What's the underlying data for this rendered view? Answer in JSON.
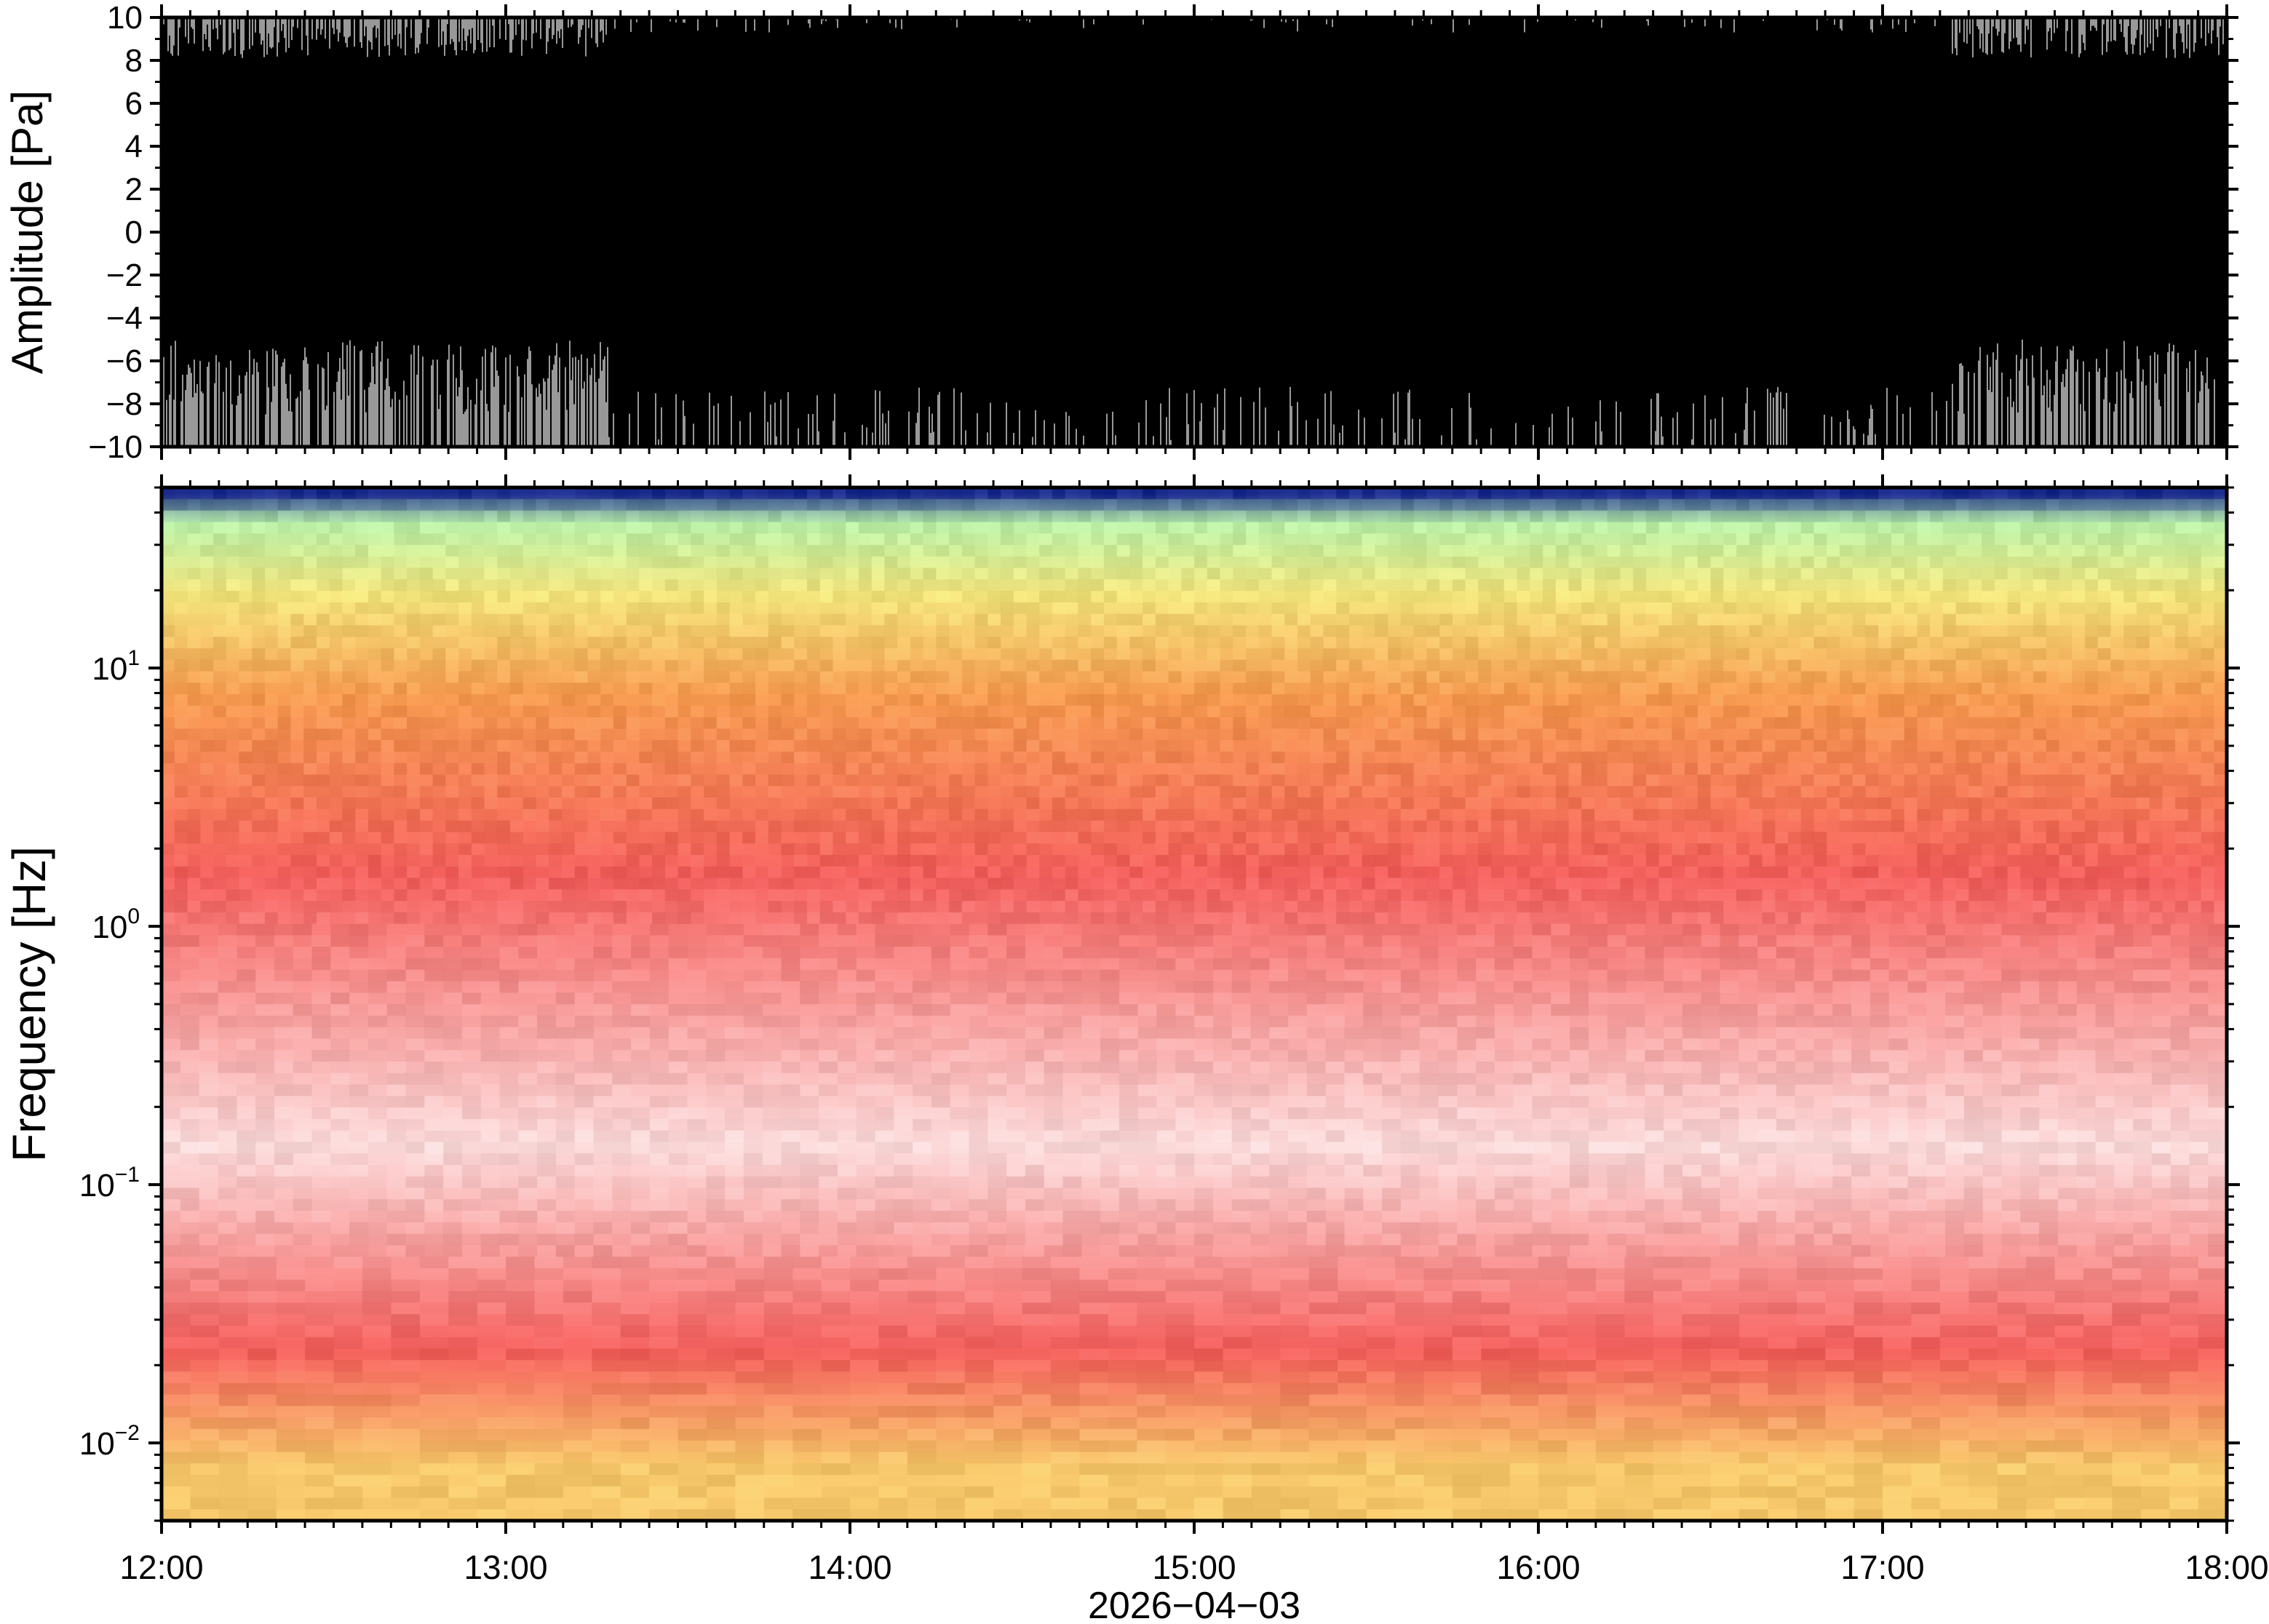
{
  "chart_data": [
    {
      "type": "line",
      "panel": "waveform",
      "ylabel": "Amplitude [Pa]",
      "ylim": [
        -10,
        10
      ],
      "yticks": [
        "10",
        "8",
        "6",
        "4",
        "2",
        "0",
        "−2",
        "−4",
        "−6",
        "−8",
        "−10"
      ],
      "ytick_values": [
        10,
        8,
        6,
        4,
        2,
        0,
        -2,
        -4,
        -6,
        -8,
        -10
      ],
      "xlim": [
        "12:00",
        "18:00"
      ],
      "description_series": {
        "envelope_top": 10,
        "envelope_bottom": -10,
        "quiet_top_min": 9.5,
        "quiet_bottom_max": -7,
        "noisy_intervals_hours": [
          [
            12.0,
            13.3
          ],
          [
            17.2,
            18.0
          ]
        ]
      },
      "colors": {
        "trace": "#000000",
        "gaps": "#ffffff"
      },
      "grid": false
    },
    {
      "type": "heatmap",
      "panel": "spectrogram",
      "ylabel": "Frequency [Hz]",
      "yscale": "log",
      "ylim": [
        0.005,
        50
      ],
      "yticks": [
        {
          "base": "10",
          "exp": "1",
          "value": 10
        },
        {
          "base": "10",
          "exp": "0",
          "value": 1
        },
        {
          "base": "10",
          "exp": "−1",
          "value": 0.1
        },
        {
          "base": "10",
          "exp": "−2",
          "value": 0.01
        }
      ],
      "xlabel": "2026−04−03",
      "xticks": [
        "12:00",
        "13:00",
        "14:00",
        "15:00",
        "16:00",
        "17:00",
        "18:00"
      ],
      "xtick_hours": [
        12,
        13,
        14,
        15,
        16,
        17,
        18
      ],
      "xlim_hours": [
        12,
        18
      ],
      "frequency_bands": [
        {
          "f_low": 45,
          "f_high": 50,
          "color": "#1a2a8c"
        },
        {
          "f_low": 30,
          "f_high": 45,
          "color": "#b8f0a8"
        },
        {
          "f_low": 12,
          "f_high": 30,
          "color": "#f2e27a"
        },
        {
          "f_low": 5,
          "f_high": 12,
          "color": "#f59a50"
        },
        {
          "f_low": 0.5,
          "f_high": 5,
          "color": "#f25f5c"
        },
        {
          "f_low": 0.04,
          "f_high": 0.5,
          "color": "#fbd9d9"
        },
        {
          "f_low": 0.013,
          "f_high": 0.04,
          "color": "#f25f5c"
        },
        {
          "f_low": 0.005,
          "f_high": 0.013,
          "color": "#f6c76a"
        }
      ],
      "grid": false
    }
  ]
}
